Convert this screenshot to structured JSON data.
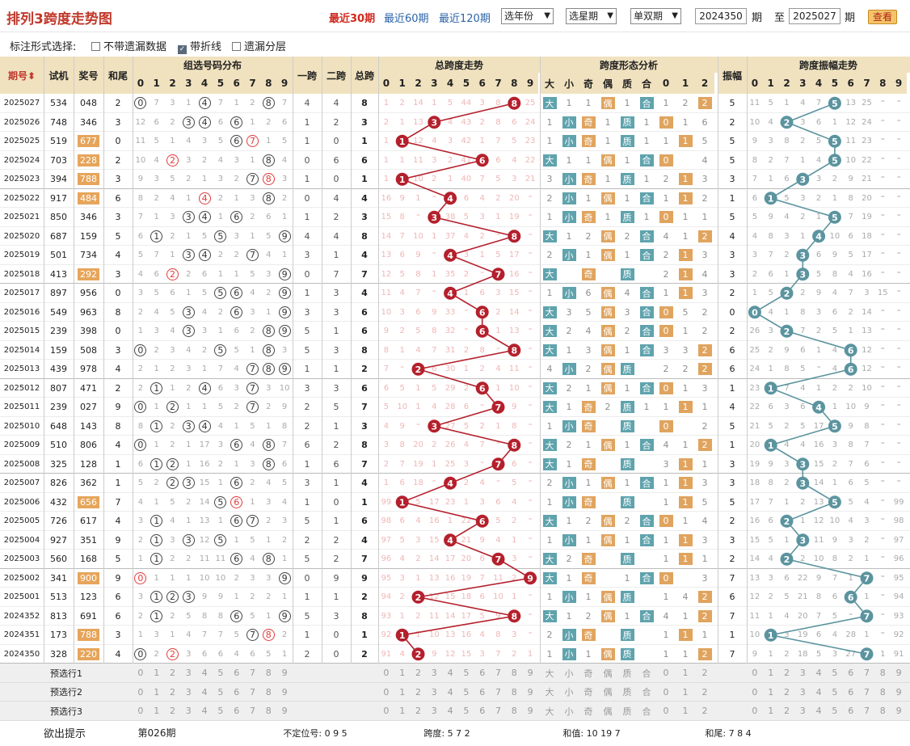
{
  "title": "排列3跨度走势图",
  "range_links": [
    {
      "label": "最近30期",
      "active": true
    },
    {
      "label": "最近60期",
      "active": false
    },
    {
      "label": "最近120期",
      "active": false
    }
  ],
  "selects": [
    "选年份",
    "选星期",
    "单双期"
  ],
  "period_from": "2024350",
  "period_label": "期",
  "to_label": "至",
  "period_to": "2025027",
  "query_btn": "查看",
  "options_label": "标注形式选择:",
  "options": [
    {
      "label": "不带遗漏数据",
      "checked": false
    },
    {
      "label": "带折线",
      "checked": true
    },
    {
      "label": "遗漏分层",
      "checked": false
    }
  ],
  "headers": {
    "period": "期号",
    "test": "试机",
    "prize": "奖号",
    "tail": "和尾",
    "group": "组选号码分布",
    "span1": "一跨",
    "span2": "二跨",
    "span_total": "总跨",
    "span_trend": "总跨度走势",
    "shape": "跨度形态分析",
    "amp": "振幅",
    "amp_trend": "跨度振幅走势",
    "shape_cols": [
      "大",
      "小",
      "奇",
      "偶",
      "质",
      "合",
      "0",
      "1",
      "2"
    ]
  },
  "digits": [
    "0",
    "1",
    "2",
    "3",
    "4",
    "5",
    "6",
    "7",
    "8",
    "9"
  ],
  "rows": [
    {
      "p": "2025027",
      "t": "534",
      "n": "048",
      "w": 2,
      "pat": "0",
      "tr": "0,7,3,1,4,7,1,2,8,7",
      "s1": 4,
      "s2": 4,
      "s": 8,
      "tm": "1,2,14,1,5,44,3,8,,25",
      "sh": ",1,1,,1,,1,2,",
      "a": 5,
      "am": "11,5,1,4,7,,13,25,,"
    },
    {
      "p": "2025026",
      "t": "748",
      "n": "346",
      "w": 3,
      "pat": "0",
      "tr": "12,6,2,3,4,6,6,1,2,6",
      "s1": 1,
      "s2": 2,
      "s": 3,
      "tm": "2,1,13,,4,43,2,8,6,24",
      "sh": "1,,,1,,1,,1,6",
      "a": 2,
      "am": "10,4,,3,6,1,12,24,,"
    },
    {
      "p": "2025025",
      "t": "519",
      "n": "677",
      "w": 0,
      "pat": "1",
      "tr": "11,5,1,4,3,5,6,7,1,5",
      "s1": 1,
      "s2": 0,
      "s": 1,
      "tm": "1,,12,4,3,42,1,7,5,23",
      "sh": "1,,,1,,1,1,,5",
      "a": 5,
      "am": "9,3,8,2,5,,11,23,,"
    },
    {
      "p": "2025024",
      "t": "703",
      "n": "228",
      "w": 2,
      "pat": "1",
      "tr": "10,4,2,3,2,4,3,1,8,4",
      "s1": 0,
      "s2": 6,
      "s": 6,
      "tm": "1,1,11,3,2,41,,6,4,22",
      "sh": ",1,1,,1,,1,,4",
      "a": 5,
      "am": "8,2,7,1,4,,10,22,,"
    },
    {
      "p": "2025023",
      "t": "394",
      "n": "788",
      "w": 3,
      "pat": "1",
      "tr": "9,3,5,2,1,3,2,7,8,3",
      "s1": 1,
      "s2": 0,
      "s": 1,
      "tm": "1,,10,2,1,40,7,5,3,21",
      "sh": "3,,,1,,1,2,,3",
      "a": 3,
      "am": "7,1,6,,3,2,9,21,,"
    },
    {
      "p": "2025022",
      "t": "917",
      "n": "484",
      "w": 6,
      "pat": "1",
      "tr": "8,2,4,1,4,2,1,3,8,2",
      "s1": 0,
      "s2": 4,
      "s": 4,
      "tm": "16,9,1,,39,6,4,2,20,",
      "sh": "2,,1,,1,,1,1,2",
      "a": 1,
      "am": "6,,5,3,2,1,8,20,,"
    },
    {
      "p": "2025021",
      "t": "850",
      "n": "346",
      "w": 3,
      "pat": "0",
      "tr": "7,1,3,3,4,1,6,2,6,1",
      "s1": 1,
      "s2": 2,
      "s": 3,
      "tm": "15,8,,2,38,5,3,1,19,",
      "sh": "1,,,1,,1,,1,1",
      "a": 5,
      "am": "5,9,4,2,1,,7,19,,"
    },
    {
      "p": "2025020",
      "t": "687",
      "n": "159",
      "w": 5,
      "pat": "0",
      "tr": "6,1,2,1,5,5,3,1,5,9",
      "s1": 4,
      "s2": 4,
      "s": 8,
      "tm": "14,7,10,1,37,4,2,,18,",
      "sh": ",1,2,,2,,4,1,2",
      "a": 4,
      "am": "4,8,3,1,,10,6,18,,"
    },
    {
      "p": "2025019",
      "t": "501",
      "n": "734",
      "w": 4,
      "pat": "0",
      "tr": "5,7,1,3,4,2,2,7,4,1",
      "s1": 3,
      "s2": 1,
      "s": 4,
      "tm": "13,6,9,,36,3,1,5,17,",
      "sh": "2,,1,,1,,2,1,3",
      "a": 3,
      "am": "3,7,2,,6,9,5,17,,"
    },
    {
      "p": "2025018",
      "t": "413",
      "n": "292",
      "w": 3,
      "pat": "1",
      "tr": "4,6,2,2,6,1,1,5,3,9",
      "s1": 0,
      "s2": 7,
      "s": 7,
      "tm": "12,5,8,1,35,2,,4,16,",
      "sh": "1,,1,,1,,2,1,4",
      "a": 3,
      "am": "2,6,1,,5,8,4,16,,"
    },
    {
      "p": "2025017",
      "t": "897",
      "n": "956",
      "w": 0,
      "pat": "0",
      "tr": "3,5,6,1,5,5,6,4,2,9",
      "s1": 1,
      "s2": 3,
      "s": 4,
      "tm": "11,4,7,,34,1,6,3,15,",
      "sh": "1,,6,,4,,1,1,3",
      "a": 2,
      "am": "1,5,,2,9,4,7,3,15,"
    },
    {
      "p": "2025016",
      "t": "549",
      "n": "963",
      "w": 8,
      "pat": "0",
      "tr": "2,4,5,3,4,2,6,3,1,9",
      "s1": 3,
      "s2": 3,
      "s": 6,
      "tm": "10,3,6,9,33,,5,2,14,",
      "sh": ",3,5,,3,,1,5,2",
      "a": 0,
      "am": ",4,1,8,3,6,2,14,,"
    },
    {
      "p": "2025015",
      "t": "239",
      "n": "398",
      "w": 0,
      "pat": "0",
      "tr": "1,3,4,3,3,1,6,2,8,9",
      "s1": 5,
      "s2": 1,
      "s": 6,
      "tm": "9,2,5,8,32,,4,1,13,",
      "sh": ",2,4,,2,,4,1,2",
      "a": 2,
      "am": "26,3,,7,2,5,1,13,,"
    },
    {
      "p": "2025014",
      "t": "159",
      "n": "508",
      "w": 3,
      "pat": "0",
      "tr": "0,2,3,4,2,5,5,1,8,3",
      "s1": 5,
      "s2": 3,
      "s": 8,
      "tm": "8,1,4,7,31,2,8,,12,",
      "sh": ",1,3,,1,,3,3,2",
      "a": 6,
      "am": "25,2,9,6,1,4,,12,,"
    },
    {
      "p": "2025013",
      "t": "439",
      "n": "978",
      "w": 4,
      "pat": "0",
      "tr": "2,1,2,3,1,7,4,7,8,9",
      "s1": 1,
      "s2": 1,
      "s": 2,
      "tm": "7,,2,6,30,1,2,4,11,",
      "sh": "4,,2,,1,,2,2,2",
      "a": 6,
      "am": "24,1,8,5,,4,3,12,,"
    },
    {
      "p": "2025012",
      "t": "807",
      "n": "471",
      "w": 2,
      "pat": "0",
      "tr": "2,1,1,2,4,6,3,7,3,10",
      "s1": 3,
      "s2": 3,
      "s": 6,
      "tm": "6,5,1,5,29,2,,1,10,",
      "sh": ",2,1,,1,,1,1,3",
      "a": 1,
      "am": "23,,7,4,1,2,2,10,,"
    },
    {
      "p": "2025011",
      "t": "239",
      "n": "027",
      "w": 9,
      "pat": "0",
      "tr": "0,1,2,1,1,5,2,7,2,9",
      "s1": 2,
      "s2": 5,
      "s": 7,
      "tm": "5,10,1,4,28,6,,2,9,",
      "sh": ",1,,2,,1,1,1,1",
      "a": 4,
      "am": "22,6,3,6,,1,10,9,,"
    },
    {
      "p": "2025010",
      "t": "648",
      "n": "143",
      "w": 8,
      "pat": "0",
      "tr": "8,1,2,3,4,4,1,5,1,8",
      "s1": 2,
      "s2": 1,
      "s": 3,
      "tm": "4,9,,3,27,5,2,1,8,",
      "sh": "1,,1,,1,,1,,2",
      "a": 5,
      "am": "21,5,2,5,17,,9,8,,"
    },
    {
      "p": "2025009",
      "t": "510",
      "n": "806",
      "w": 4,
      "pat": "0",
      "tr": "0,1,2,1,17,3,6,4,8,7",
      "s1": 6,
      "s2": 2,
      "s": 8,
      "tm": "3,8,20,2,26,4,7,,7,",
      "sh": ",2,1,,1,,4,1,2",
      "a": 1,
      "am": "20,,4,4,16,3,8,7,,"
    },
    {
      "p": "2025008",
      "t": "325",
      "n": "128",
      "w": 1,
      "pat": "0",
      "tr": "6,1,2,1,16,2,1,3,8,6",
      "s1": 1,
      "s2": 6,
      "s": 7,
      "tm": "2,7,19,1,25,3,,1,6,",
      "sh": ",1,2,,1,,3,1,1",
      "a": 3,
      "am": "19,9,3,,15,2,7,6,,"
    },
    {
      "p": "2025007",
      "t": "826",
      "n": "362",
      "w": 1,
      "pat": "0",
      "tr": "5,2,2,3,15,1,6,2,4,5",
      "s1": 3,
      "s2": 1,
      "s": 4,
      "tm": "1,6,18,,24,2,4,,5,",
      "sh": "2,,1,,1,,1,1,3",
      "a": 3,
      "am": "18,8,2,,14,1,6,5,,"
    },
    {
      "p": "2025006",
      "t": "432",
      "n": "656",
      "w": 7,
      "pat": "1",
      "tr": "4,1,5,2,14,5,6,1,3,4",
      "s1": 1,
      "s2": 0,
      "s": 1,
      "tm": "99,,5,17,23,1,3,6,4,",
      "sh": "1,,1,,1,,1,,5",
      "a": 5,
      "am": "17,7,1,2,13,,5,4,,99"
    },
    {
      "p": "2025005",
      "t": "726",
      "n": "617",
      "w": 4,
      "pat": "0",
      "tr": "3,1,4,1,13,1,6,7,2,3",
      "s1": 5,
      "s2": 1,
      "s": 6,
      "tm": "98,6,4,16,1,22,,5,2,",
      "sh": ",1,2,,2,,4,1,4",
      "a": 2,
      "am": "16,6,,1,12,10,4,3,,98"
    },
    {
      "p": "2025004",
      "t": "927",
      "n": "351",
      "w": 9,
      "pat": "0",
      "tr": "2,1,3,3,12,5,1,5,1,2",
      "s1": 2,
      "s2": 2,
      "s": 4,
      "tm": "97,5,3,15,,21,9,4,1,",
      "sh": "1,,1,,1,,1,1,3",
      "a": 3,
      "am": "15,5,1,,11,9,3,2,,97"
    },
    {
      "p": "2025003",
      "t": "560",
      "n": "168",
      "w": 5,
      "pat": "0",
      "tr": "1,1,2,2,11,11,6,4,8,1",
      "s1": 5,
      "s2": 2,
      "s": 7,
      "tm": "96,4,2,14,17,20,6,,3,",
      "sh": ",2,2,,1,,1,2,1",
      "a": 2,
      "am": "14,4,,2,10,8,2,1,,96"
    },
    {
      "p": "2025002",
      "t": "341",
      "n": "900",
      "w": 9,
      "pat": "1",
      "tr": "0,1,1,1,10,10,2,3,3,9",
      "s1": 0,
      "s2": 9,
      "s": 9,
      "tm": "95,3,1,13,16,19,7,11,2,",
      "sh": ",1,1,,1,,1,,3",
      "a": 7,
      "am": "13,3,6,22,9,7,1,,,95"
    },
    {
      "p": "2025001",
      "t": "513",
      "n": "123",
      "w": 6,
      "pat": "0",
      "tr": "3,1,2,3,9,9,1,2,2,1",
      "s1": 1,
      "s2": 1,
      "s": 2,
      "tm": "94,2,,12,15,18,6,10,1,",
      "sh": "1,,1,,2,,1,4,2",
      "a": 6,
      "am": "12,2,5,21,8,6,,1,,94"
    },
    {
      "p": "2024352",
      "t": "813",
      "n": "691",
      "w": 6,
      "pat": "0",
      "tr": "2,1,2,5,8,8,6,5,1,9",
      "s1": 5,
      "s2": 3,
      "s": 8,
      "tm": "93,1,2,11,14,17,5,9,,",
      "sh": ",1,2,,1,,4,1,1",
      "a": 7,
      "am": "11,1,4,20,7,5,,2,,93"
    },
    {
      "p": "2024351",
      "t": "173",
      "n": "788",
      "w": 3,
      "pat": "1",
      "tr": "1,3,1,4,7,7,5,7,8,2",
      "s1": 1,
      "s2": 0,
      "s": 1,
      "tm": "92,,1,10,13,16,4,8,3,",
      "sh": "2,,1,,1,,1,,1",
      "a": 1,
      "am": "10,,3,19,6,4,28,1,,92"
    },
    {
      "p": "2024350",
      "t": "328",
      "n": "220",
      "w": 4,
      "pat": "1",
      "tr": "0,2,2,3,6,6,4,6,5,1",
      "s1": 2,
      "s2": 0,
      "s": 2,
      "tm": "91,4,,9,12,15,3,7,2,1",
      "sh": "1,,1,,2,,1,1,2",
      "a": 7,
      "am": "9,1,2,18,5,3,27,,1,91"
    }
  ],
  "presel": [
    "预选行1",
    "预选行2",
    "预选行3"
  ],
  "footer": {
    "label": "欲出提示",
    "period": "第026期",
    "pos": "不定位号: 0 9 5",
    "span": "跨度: 5 7 2",
    "sum": "和值: 10 19 7",
    "tail": "和尾: 7 8 4"
  },
  "colors": {
    "header": "#f0e2bf",
    "red_ball": "#b4202c",
    "teal_ball": "#5b949f",
    "teal": "#5fa3ad",
    "orange": "#e0a45f"
  }
}
